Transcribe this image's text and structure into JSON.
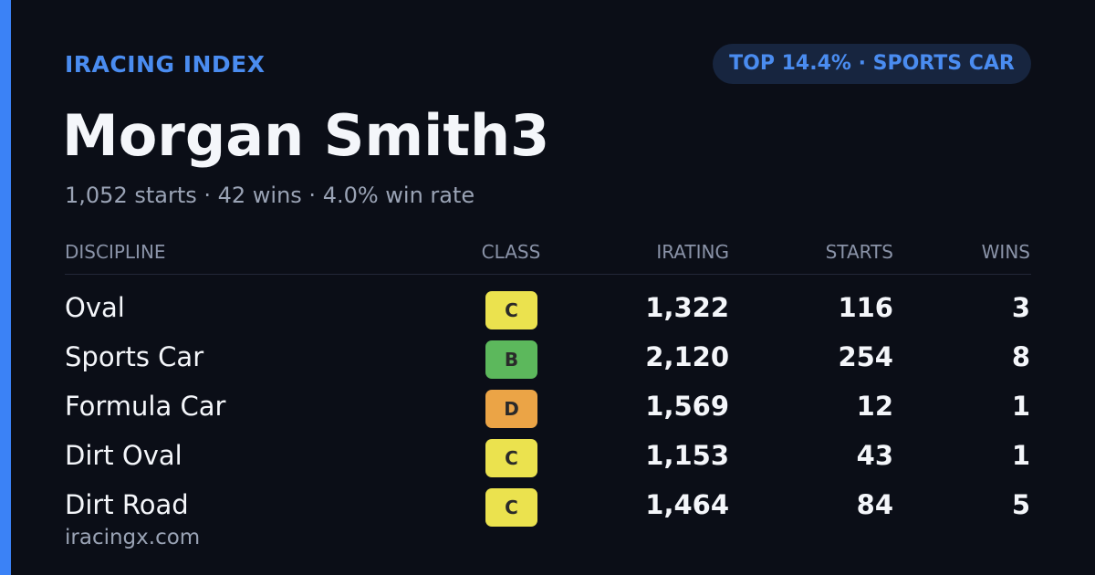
{
  "header": {
    "brand": "IRACING INDEX",
    "badge": "TOP 14.4% · SPORTS CAR"
  },
  "profile": {
    "name": "Morgan Smith3",
    "stats": "1,052 starts · 42 wins · 4.0% win rate"
  },
  "table": {
    "columns": [
      "DISCIPLINE",
      "CLASS",
      "IRATING",
      "STARTS",
      "WINS"
    ],
    "rows": [
      {
        "discipline": "Oval",
        "class": "C",
        "class_color": "#ebe24e",
        "irating": "1,322",
        "starts": "116",
        "wins": "3"
      },
      {
        "discipline": "Sports Car",
        "class": "B",
        "class_color": "#5cb85c",
        "irating": "2,120",
        "starts": "254",
        "wins": "8"
      },
      {
        "discipline": "Formula Car",
        "class": "D",
        "class_color": "#eba446",
        "irating": "1,569",
        "starts": "12",
        "wins": "1"
      },
      {
        "discipline": "Dirt Oval",
        "class": "C",
        "class_color": "#ebe24e",
        "irating": "1,153",
        "starts": "43",
        "wins": "1"
      },
      {
        "discipline": "Dirt Road",
        "class": "C",
        "class_color": "#ebe24e",
        "irating": "1,464",
        "starts": "84",
        "wins": "5"
      }
    ]
  },
  "footer": {
    "site": "iracingx.com"
  }
}
